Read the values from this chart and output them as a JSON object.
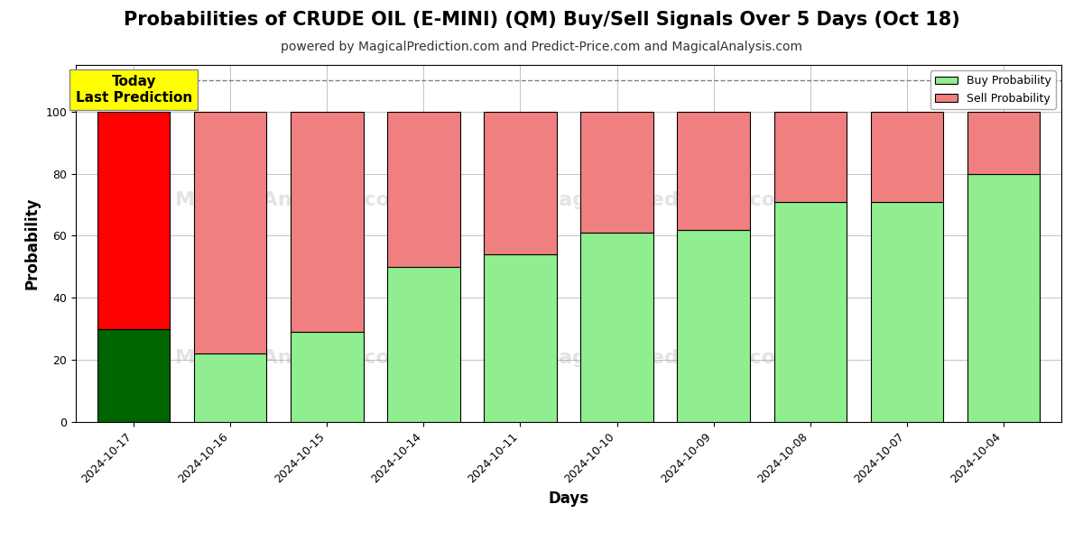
{
  "title": "Probabilities of CRUDE OIL (E-MINI) (QM) Buy/Sell Signals Over 5 Days (Oct 18)",
  "subtitle": "powered by MagicalPrediction.com and Predict-Price.com and MagicalAnalysis.com",
  "xlabel": "Days",
  "ylabel": "Probability",
  "dates": [
    "2024-10-17",
    "2024-10-16",
    "2024-10-15",
    "2024-10-14",
    "2024-10-11",
    "2024-10-10",
    "2024-10-09",
    "2024-10-08",
    "2024-10-07",
    "2024-10-04"
  ],
  "buy_values": [
    30,
    22,
    29,
    50,
    54,
    61,
    62,
    71,
    71,
    80
  ],
  "sell_values": [
    70,
    78,
    71,
    50,
    46,
    39,
    38,
    29,
    29,
    20
  ],
  "today_bar_index": 0,
  "buy_color_today": "#006400",
  "sell_color_today": "#ff0000",
  "buy_color_normal": "#90EE90",
  "sell_color_normal": "#F08080",
  "today_label_bg": "#ffff00",
  "today_label_text": "Today\nLast Prediction",
  "legend_buy_label": "Buy Probability",
  "legend_sell_label": "Sell Probability",
  "ylim": [
    0,
    115
  ],
  "dashed_line_y": 110,
  "bar_edge_color": "#000000",
  "bar_linewidth": 0.8,
  "grid_color": "#aaaaaa",
  "background_color": "#ffffff",
  "title_fontsize": 15,
  "subtitle_fontsize": 10,
  "axis_label_fontsize": 12,
  "tick_fontsize": 9,
  "bar_width": 0.75
}
